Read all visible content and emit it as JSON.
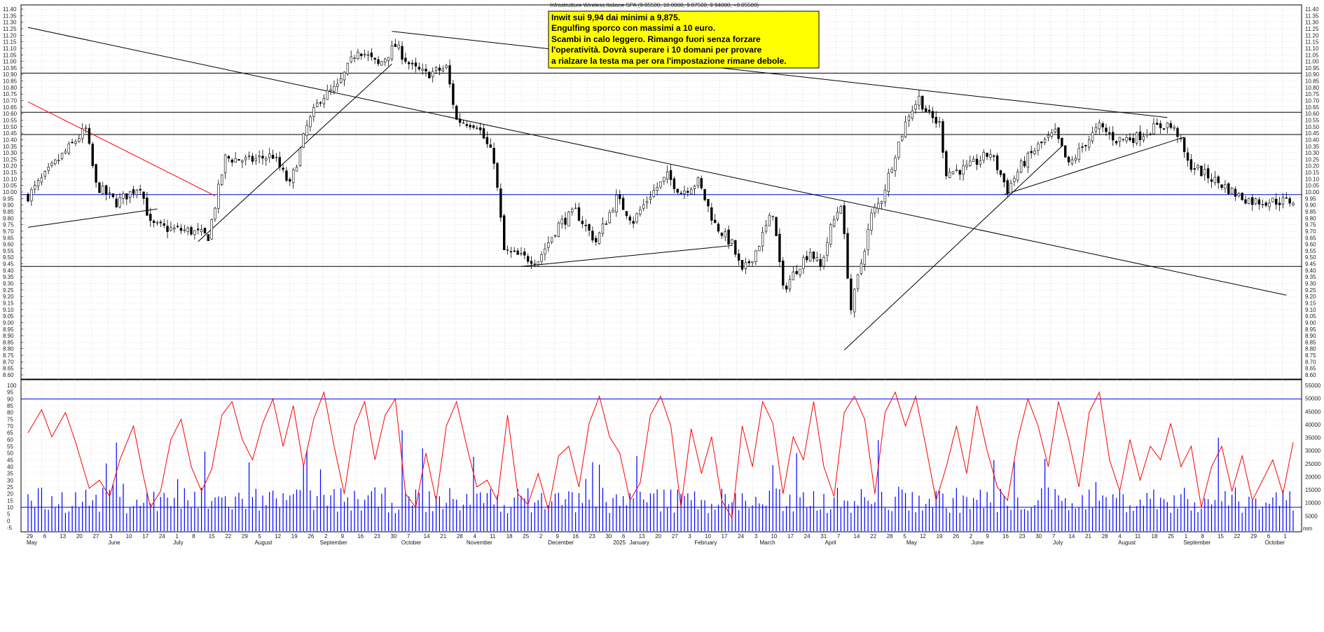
{
  "chart_data": [
    {
      "type": "candlestick",
      "title": "Infrastrutture Wireless Italiane SPA (9.85500, 10.0000, 9.87500, 9.94000, +0.05500)",
      "annotation": [
        "Inwit sui 9,94 dai minimi a 9,875.",
        "Engulfing sporco con massimi a 10 euro.",
        "Scambi in calo leggero. Rimango fuori senza forzare",
        "l'operatività. Dovrà superare i 10 domani per provare",
        "a rialzare la testa ma per ora l'impostazione rimane debole."
      ],
      "y_axis": {
        "min": 8.6,
        "max": 11.4,
        "step": 0.05,
        "tick_labels": [
          "8.60",
          "8.65",
          "8.70",
          "8.75",
          "8.80",
          "8.85",
          "8.90",
          "8.95",
          "9.00",
          "9.05",
          "9.10",
          "9.15",
          "9.20",
          "9.25",
          "9.30",
          "9.35",
          "9.40",
          "9.45",
          "9.50",
          "9.55",
          "9.60",
          "9.65",
          "9.70",
          "9.75",
          "9.80",
          "9.85",
          "9.90",
          "9.95",
          "10.00",
          "10.05",
          "10.10",
          "10.15",
          "10.20",
          "10.25",
          "10.30",
          "10.35",
          "10.40",
          "10.45",
          "10.50",
          "10.55",
          "10.60",
          "10.65",
          "10.70",
          "10.75",
          "10.80",
          "10.85",
          "10.90",
          "10.95",
          "11.00",
          "11.05",
          "11.10",
          "11.15",
          "11.20",
          "11.25",
          "11.30",
          "11.35",
          "11.40"
        ]
      },
      "horizontal_levels": [
        {
          "value": 10.91,
          "color": "#000000"
        },
        {
          "value": 10.61,
          "color": "#000000"
        },
        {
          "value": 10.44,
          "color": "#000000"
        },
        {
          "value": 9.98,
          "color": "#0000cc"
        },
        {
          "value": 9.43,
          "color": "#000000"
        }
      ],
      "trendlines": [
        {
          "points": [
            [
              0,
              11.26
            ],
            [
              370,
              9.21
            ]
          ],
          "color": "#000000"
        },
        {
          "points": [
            [
              0,
              10.69
            ],
            [
              55,
              9.97
            ]
          ],
          "color": "#ff0000"
        },
        {
          "points": [
            [
              0,
              9.73
            ],
            [
              38,
              9.87
            ]
          ],
          "color": "#000000"
        },
        {
          "points": [
            [
              50,
              9.62
            ],
            [
              107,
              10.98
            ]
          ],
          "color": "#000000"
        },
        {
          "points": [
            [
              107,
              11.23
            ],
            [
              335,
              10.57
            ]
          ],
          "color": "#000000"
        },
        {
          "points": [
            [
              145,
              9.43
            ],
            [
              207,
              9.59
            ]
          ],
          "color": "#000000"
        },
        {
          "points": [
            [
              240,
              8.79
            ],
            [
              304,
              10.35
            ]
          ],
          "color": "#000000"
        },
        {
          "points": [
            [
              287,
              9.98
            ],
            [
              340,
              10.42
            ]
          ],
          "color": "#000000"
        }
      ],
      "series": [
        {
          "name": "price",
          "anchors": [
            [
              0,
              9.97
            ],
            [
              9,
              10.25
            ],
            [
              17,
              10.48
            ],
            [
              20,
              10.05
            ],
            [
              26,
              9.92
            ],
            [
              33,
              10.05
            ],
            [
              36,
              9.75
            ],
            [
              41,
              9.72
            ],
            [
              48,
              9.7
            ],
            [
              53,
              9.66
            ],
            [
              58,
              10.26
            ],
            [
              65,
              10.24
            ],
            [
              72,
              10.28
            ],
            [
              77,
              10.05
            ],
            [
              82,
              10.5
            ],
            [
              86,
              10.72
            ],
            [
              91,
              10.8
            ],
            [
              97,
              11.1
            ],
            [
              103,
              10.97
            ],
            [
              108,
              11.12
            ],
            [
              113,
              10.95
            ],
            [
              117,
              10.9
            ],
            [
              123,
              10.95
            ],
            [
              126,
              10.55
            ],
            [
              132,
              10.52
            ],
            [
              137,
              10.25
            ],
            [
              140,
              9.55
            ],
            [
              145,
              9.5
            ],
            [
              150,
              9.48
            ],
            [
              156,
              9.75
            ],
            [
              161,
              9.85
            ],
            [
              167,
              9.62
            ],
            [
              173,
              9.95
            ],
            [
              178,
              9.78
            ],
            [
              183,
              9.98
            ],
            [
              188,
              10.12
            ],
            [
              192,
              10.0
            ],
            [
              197,
              10.08
            ],
            [
              202,
              9.75
            ],
            [
              207,
              9.6
            ],
            [
              210,
              9.38
            ],
            [
              214,
              9.55
            ],
            [
              219,
              9.85
            ],
            [
              222,
              9.25
            ],
            [
              227,
              9.45
            ],
            [
              230,
              9.55
            ],
            [
              233,
              9.42
            ],
            [
              236,
              9.72
            ],
            [
              239,
              9.92
            ],
            [
              242,
              9.1
            ],
            [
              246,
              9.58
            ],
            [
              248,
              9.82
            ],
            [
              251,
              9.95
            ],
            [
              255,
              10.3
            ],
            [
              259,
              10.6
            ],
            [
              262,
              10.72
            ],
            [
              265,
              10.58
            ],
            [
              268,
              10.52
            ],
            [
              270,
              10.15
            ],
            [
              276,
              10.18
            ],
            [
              283,
              10.3
            ],
            [
              288,
              10.02
            ],
            [
              292,
              10.2
            ],
            [
              297,
              10.35
            ],
            [
              302,
              10.45
            ],
            [
              306,
              10.2
            ],
            [
              311,
              10.38
            ],
            [
              315,
              10.5
            ],
            [
              320,
              10.4
            ],
            [
              326,
              10.42
            ],
            [
              330,
              10.48
            ],
            [
              335,
              10.52
            ],
            [
              338,
              10.45
            ],
            [
              341,
              10.22
            ],
            [
              347,
              10.12
            ],
            [
              352,
              10.04
            ],
            [
              356,
              9.97
            ],
            [
              360,
              9.93
            ]
          ]
        },
        {
          "name": "oscillator",
          "anchors": [
            [
              0,
              65
            ],
            [
              4,
              82
            ],
            [
              7,
              62
            ],
            [
              11,
              80
            ],
            [
              14,
              58
            ],
            [
              18,
              24
            ],
            [
              21,
              30
            ],
            [
              24,
              18
            ],
            [
              27,
              45
            ],
            [
              31,
              70
            ],
            [
              34,
              32
            ],
            [
              36,
              10
            ],
            [
              39,
              22
            ],
            [
              42,
              60
            ],
            [
              45,
              75
            ],
            [
              48,
              40
            ],
            [
              51,
              22
            ],
            [
              54,
              38
            ],
            [
              57,
              78
            ],
            [
              60,
              88
            ],
            [
              63,
              60
            ],
            [
              66,
              45
            ],
            [
              69,
              72
            ],
            [
              72,
              90
            ],
            [
              75,
              55
            ],
            [
              78,
              85
            ],
            [
              81,
              40
            ],
            [
              84,
              75
            ],
            [
              87,
              95
            ],
            [
              90,
              55
            ],
            [
              93,
              20
            ],
            [
              96,
              70
            ],
            [
              99,
              88
            ],
            [
              102,
              45
            ],
            [
              105,
              78
            ],
            [
              108,
              90
            ],
            [
              111,
              20
            ],
            [
              114,
              10
            ],
            [
              117,
              50
            ],
            [
              120,
              15
            ],
            [
              123,
              70
            ],
            [
              126,
              88
            ],
            [
              129,
              55
            ],
            [
              132,
              25
            ],
            [
              135,
              30
            ],
            [
              138,
              15
            ],
            [
              141,
              78
            ],
            [
              144,
              20
            ],
            [
              147,
              12
            ],
            [
              150,
              35
            ],
            [
              153,
              8
            ],
            [
              156,
              48
            ],
            [
              159,
              55
            ],
            [
              162,
              25
            ],
            [
              165,
              72
            ],
            [
              168,
              92
            ],
            [
              171,
              62
            ],
            [
              174,
              50
            ],
            [
              177,
              15
            ],
            [
              180,
              28
            ],
            [
              183,
              78
            ],
            [
              186,
              92
            ],
            [
              189,
              70
            ],
            [
              192,
              10
            ],
            [
              195,
              68
            ],
            [
              198,
              35
            ],
            [
              201,
              62
            ],
            [
              204,
              15
            ],
            [
              207,
              2
            ],
            [
              210,
              70
            ],
            [
              213,
              40
            ],
            [
              216,
              88
            ],
            [
              219,
              72
            ],
            [
              222,
              20
            ],
            [
              225,
              62
            ],
            [
              228,
              45
            ],
            [
              231,
              88
            ],
            [
              234,
              40
            ],
            [
              237,
              18
            ],
            [
              240,
              80
            ],
            [
              243,
              92
            ],
            [
              246,
              75
            ],
            [
              249,
              20
            ],
            [
              252,
              80
            ],
            [
              255,
              95
            ],
            [
              258,
              70
            ],
            [
              261,
              92
            ],
            [
              264,
              55
            ],
            [
              267,
              15
            ],
            [
              270,
              40
            ],
            [
              273,
              70
            ],
            [
              276,
              35
            ],
            [
              279,
              85
            ],
            [
              282,
              52
            ],
            [
              285,
              25
            ],
            [
              288,
              15
            ],
            [
              291,
              60
            ],
            [
              294,
              90
            ],
            [
              297,
              70
            ],
            [
              300,
              40
            ],
            [
              303,
              88
            ],
            [
              306,
              60
            ],
            [
              309,
              25
            ],
            [
              312,
              80
            ],
            [
              315,
              95
            ],
            [
              318,
              45
            ],
            [
              321,
              22
            ],
            [
              324,
              60
            ],
            [
              327,
              30
            ],
            [
              330,
              55
            ],
            [
              333,
              45
            ],
            [
              336,
              72
            ],
            [
              339,
              40
            ],
            [
              342,
              55
            ],
            [
              345,
              10
            ],
            [
              348,
              40
            ],
            [
              351,
              55
            ],
            [
              354,
              22
            ],
            [
              357,
              48
            ],
            [
              360,
              15
            ],
            [
              363,
              30
            ],
            [
              366,
              45
            ],
            [
              369,
              20
            ],
            [
              372,
              58
            ]
          ]
        },
        {
          "name": "volume"
        }
      ],
      "volume_axis": {
        "min": 5000,
        "max": 55000,
        "step": 5000,
        "tick_labels": [
          "5000",
          "10000",
          "15000",
          "20000",
          "25000",
          "30000",
          "35000",
          "40000",
          "45000",
          "50000",
          "55000"
        ]
      },
      "oscillator_axis": {
        "min": -5,
        "max": 100,
        "step": 5,
        "tick_labels": [
          "-5",
          "0",
          "5",
          "10",
          "15",
          "20",
          "25",
          "30",
          "35",
          "40",
          "45",
          "50",
          "55",
          "60",
          "65",
          "70",
          "75",
          "80",
          "85",
          "90",
          "95",
          "100"
        ]
      },
      "oscillator_levels": [
        90,
        10
      ],
      "date_ticks": [
        "29",
        "6",
        "13",
        "20",
        "27",
        "3",
        "10",
        "17",
        "24",
        "1",
        "8",
        "15",
        "22",
        "29",
        "5",
        "12",
        "19",
        "26",
        "2",
        "9",
        "16",
        "23",
        "30",
        "7",
        "14",
        "21",
        "28",
        "4",
        "11",
        "18",
        "25",
        "2",
        "9",
        "16",
        "23",
        "30",
        "6",
        "13",
        "20",
        "27",
        "3",
        "10",
        "17",
        "24",
        "3",
        "10",
        "17",
        "24",
        "31",
        "7",
        "14",
        "22",
        "28",
        "5",
        "12",
        "19",
        "26",
        "2",
        "9",
        "16",
        "23",
        "30",
        "7",
        "14",
        "21",
        "28",
        "4",
        "11",
        "18",
        "25",
        "1",
        "8",
        "15",
        "22",
        "29",
        "6",
        "1"
      ],
      "month_labels": [
        "May",
        "June",
        "July",
        "August",
        "September",
        "October",
        "November",
        "December",
        "2025",
        "January",
        "February",
        "March",
        "April",
        "May",
        "June",
        "July",
        "August",
        "September",
        "October"
      ],
      "unit_label": "mm"
    }
  ],
  "colors": {
    "price": "#000000",
    "oscillator": "#ff0000",
    "volume": "#0000ff",
    "annotation_box": "#ffff00",
    "grid": "#888888"
  }
}
